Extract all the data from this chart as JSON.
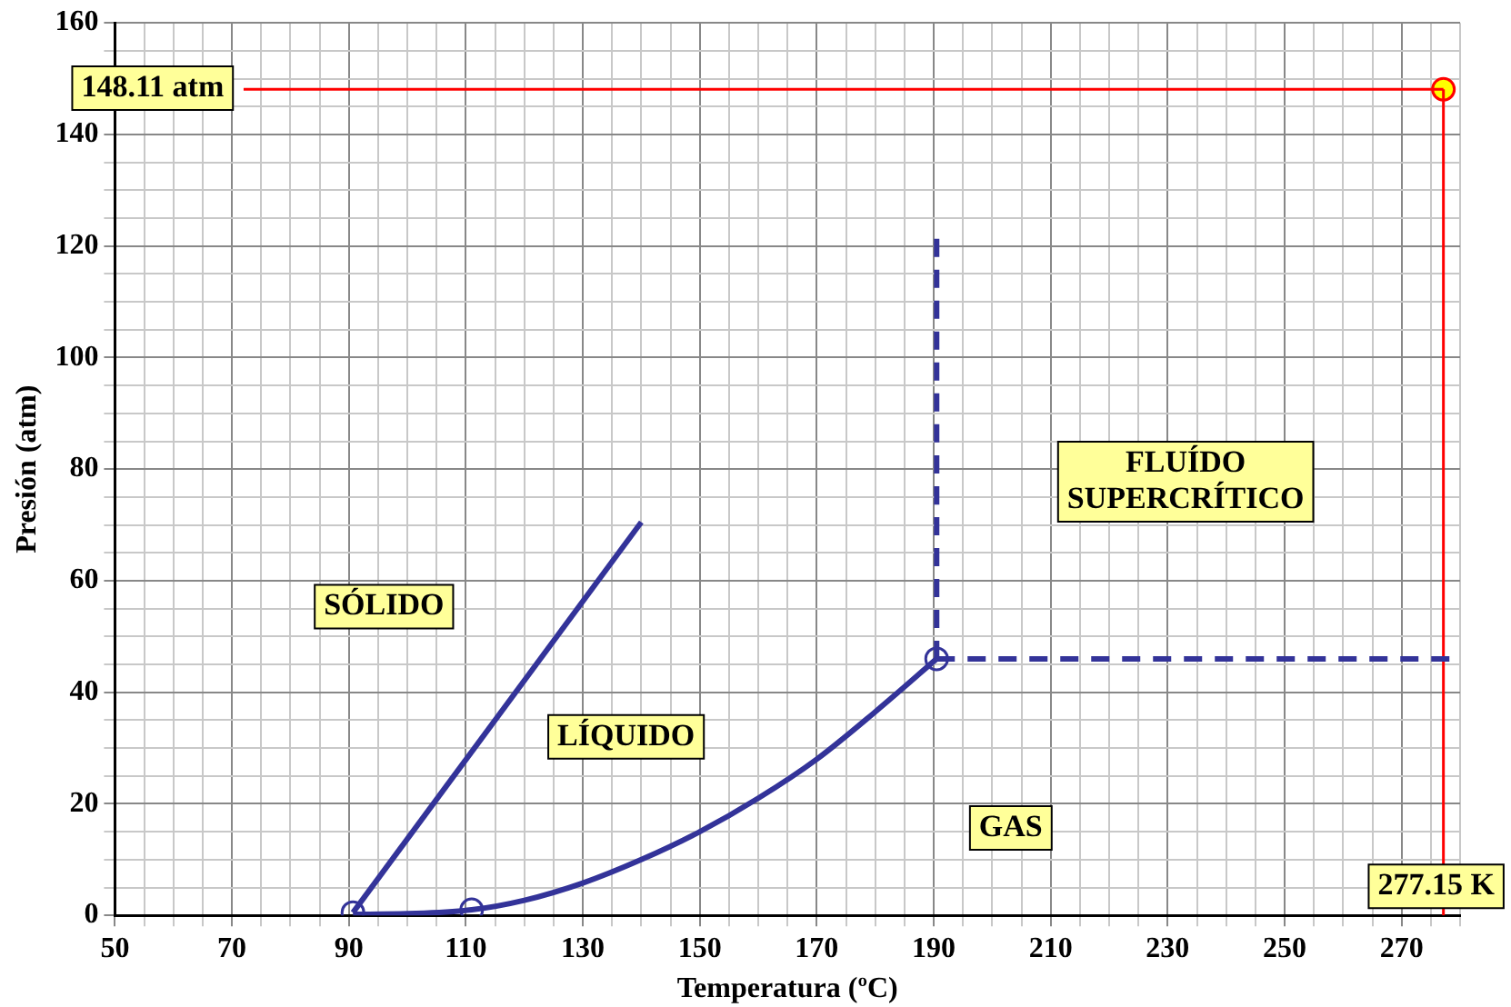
{
  "chart_data": {
    "type": "line",
    "xlabel": "Temperatura (ºC)",
    "ylabel": "Presión (atm)",
    "xlim": [
      50,
      280
    ],
    "xticks": [
      50,
      {
        "value": 55,
        "label": null
      },
      {
        "value": 60,
        "label": null
      },
      {
        "value": 65,
        "label": null
      },
      70,
      {
        "value": 75,
        "label": null
      },
      {
        "value": 80,
        "label": null
      },
      {
        "value": 85,
        "label": null
      },
      90,
      {
        "value": 95,
        "label": null
      },
      {
        "value": 100,
        "label": null
      },
      {
        "value": 105,
        "label": null
      },
      110,
      {
        "value": 115,
        "label": null
      },
      {
        "value": 120,
        "label": null
      },
      {
        "value": 125,
        "label": null
      },
      130,
      {
        "value": 135,
        "label": null
      },
      {
        "value": 140,
        "label": null
      },
      {
        "value": 145,
        "label": null
      },
      150,
      {
        "value": 155,
        "label": null
      },
      {
        "value": 160,
        "label": null
      },
      {
        "value": 165,
        "label": null
      },
      170,
      {
        "value": 175,
        "label": null
      },
      {
        "value": 180,
        "label": null
      },
      {
        "value": 185,
        "label": null
      },
      190,
      {
        "value": 195,
        "label": null
      },
      {
        "value": 200,
        "label": null
      },
      {
        "value": 205,
        "label": null
      },
      210,
      {
        "value": 215,
        "label": null
      },
      {
        "value": 220,
        "label": null
      },
      {
        "value": 225,
        "label": null
      },
      230,
      {
        "value": 235,
        "label": null
      },
      {
        "value": 240,
        "label": null
      },
      {
        "value": 245,
        "label": null
      },
      250,
      {
        "value": 255,
        "label": null
      },
      {
        "value": 260,
        "label": null
      },
      {
        "value": 265,
        "label": null
      },
      270,
      {
        "value": 275,
        "label": null
      },
      {
        "value": 280,
        "label": null
      }
    ],
    "ylim": [
      0,
      160
    ],
    "yticks": [
      0,
      {
        "value": 5,
        "label": null
      },
      {
        "value": 10,
        "label": null
      },
      {
        "value": 15,
        "label": null
      },
      20,
      {
        "value": 25,
        "label": null
      },
      {
        "value": 30,
        "label": null
      },
      {
        "value": 35,
        "label": null
      },
      40,
      {
        "value": 45,
        "label": null
      },
      {
        "value": 50,
        "label": null
      },
      {
        "value": 55,
        "label": null
      },
      60,
      {
        "value": 65,
        "label": null
      },
      {
        "value": 70,
        "label": null
      },
      {
        "value": 75,
        "label": null
      },
      80,
      {
        "value": 85,
        "label": null
      },
      {
        "value": 90,
        "label": null
      },
      {
        "value": 95,
        "label": null
      },
      100,
      {
        "value": 105,
        "label": null
      },
      {
        "value": 110,
        "label": null
      },
      {
        "value": 115,
        "label": null
      },
      120,
      {
        "value": 125,
        "label": null
      },
      {
        "value": 130,
        "label": null
      },
      {
        "value": 135,
        "label": null
      },
      140,
      {
        "value": 145,
        "label": null
      },
      {
        "value": 150,
        "label": null
      },
      {
        "value": 155,
        "label": null
      },
      160
    ],
    "grid": true,
    "legend": false,
    "series": [
      {
        "color": "#333399",
        "line_style": "solid",
        "marker": "none",
        "x": [
          90.7,
          140
        ],
        "values": [
          0.5,
          70.5
        ]
      },
      {
        "color": "#333399",
        "line_style": "solid",
        "marker": "none",
        "x": [
          90.7,
          100,
          111,
          120,
          130,
          140,
          150,
          160,
          170,
          180,
          190.5
        ],
        "values": [
          0.2,
          0.3,
          1,
          2.7,
          5.8,
          10,
          15,
          21,
          28,
          36.5,
          46
        ]
      },
      {
        "type": "scatter",
        "color": "#333399",
        "marker": "circle",
        "x": [
          90.7,
          111,
          190.5
        ],
        "values": [
          0.5,
          1,
          46
        ]
      },
      {
        "color": "#333399",
        "line_style": "dashed",
        "marker": "none",
        "x": [
          190.5,
          190.5
        ],
        "values": [
          46,
          122
        ]
      },
      {
        "color": "#333399",
        "line_style": "dashed",
        "marker": "none",
        "x": [
          190.5,
          280
        ],
        "values": [
          46,
          46
        ]
      },
      {
        "color": "#ff0000",
        "line_style": "solid",
        "marker": "none",
        "x": [
          72,
          277.15
        ],
        "values": [
          148.11,
          148.11
        ]
      },
      {
        "color": "#ff0000",
        "line_style": "solid",
        "marker": "none",
        "x": [
          277.15,
          277.15
        ],
        "values": [
          0,
          148.11
        ]
      },
      {
        "type": "scatter",
        "color": "#ffff00",
        "marker": "circle",
        "x": [
          277.15
        ],
        "values": [
          148.11
        ]
      }
    ],
    "annotations": [
      "SÓLIDO",
      "LÍQUIDO",
      "FLUÍDO\nSUPERCRÍTICO",
      "GAS",
      "148.11 atm",
      {
        "text": "277.15 K",
        "x": 277.15
      }
    ]
  }
}
